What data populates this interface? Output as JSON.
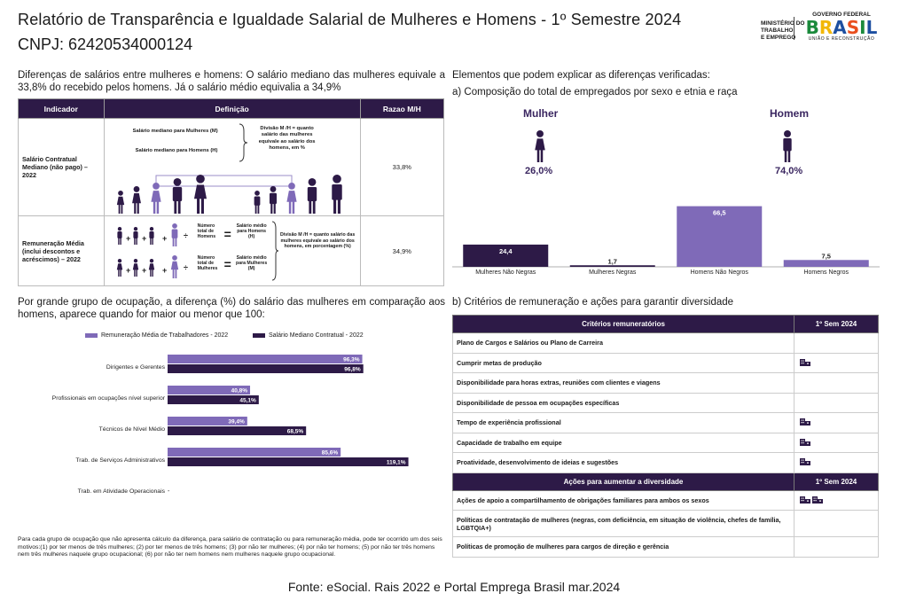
{
  "header": {
    "title": "Relatório de Transparência e Igualdade Salarial de Mulheres e Homens - 1º Semestre 2024",
    "cnpj": "CNPJ: 62420534000124",
    "ministry": [
      "MINISTÉRIO DO",
      "TRABALHO",
      "E EMPREGO"
    ],
    "gov_top": "GOVERNO FEDERAL",
    "gov_brand": "BRASIL",
    "gov_sub": "UNIÃO E RECONSTRUÇÃO"
  },
  "intro": "Diferenças de salários entre mulheres e homens: O salário mediano das mulheres equivale a 33,8% do recebido pelos homens. Já o salário médio equivalia a 34,9%",
  "left_table": {
    "headers": [
      "Indicador",
      "Definição",
      "Razao M/H"
    ],
    "row1": {
      "indicator": "Salário Contratual Mediano (não pago) – 2022",
      "def_women": "Salário mediano para Mulheres (M)",
      "def_men": "Salário mediano para Homens (H)",
      "def_division": "Divisão M /H = quanto salário das mulheres equivale ao salário dos homens, em %",
      "ratio": "33,8%"
    },
    "row2": {
      "indicator": "Remuneração Média (inclui descontos e acréscimos) – 2022",
      "total_men": "Número total de Homens",
      "avg_men": "Salário médio para Homens (H)",
      "total_women": "Número total de Mulheres",
      "avg_women": "Salário médio para Mulheres (M)",
      "division": "Divisão M /H = quanto salário das mulheres equivale ao salário dos homens, em porcentagem (%)",
      "ratio": "34,9%"
    }
  },
  "right_intro": "Elementos que podem explicar as diferenças verificadas:",
  "composition_title": "a) Composição do total de empregados por sexo e etnia e raça",
  "gender": {
    "women_label": "Mulher",
    "women_pct": "26,0%",
    "men_label": "Homem",
    "men_pct": "74,0%"
  },
  "colors": {
    "dark": "#2d1a47",
    "light": "#7f6ab8",
    "text_dark": "#3a2660"
  },
  "composition_chart": {
    "type": "bar",
    "categories": [
      "Mulheres Não Negras",
      "Mulheres Negras",
      "Homens Não Negros",
      "Homens Negros"
    ],
    "values": [
      24.4,
      1.7,
      66.5,
      7.5
    ],
    "value_labels": [
      "24,4",
      "1,7",
      "66,5",
      "7,5"
    ],
    "ylim": [
      0,
      70
    ]
  },
  "occupation_text": "Por grande grupo de ocupação, a diferença (%) do salário das mulheres em comparação aos homens, aparece quando for maior ou menor que 100:",
  "occupation_chart": {
    "type": "bar",
    "orientation": "horizontal",
    "categories": [
      "Dirigentes e Gerentes",
      "Profissionais em ocupações nível superior",
      "Técnicos de Nível Médio",
      "Trab. de Serviços Administrativos",
      "Trab. em Atividade Operacionais"
    ],
    "series": [
      {
        "name": "Remuneração Média de Trabalhadores - 2022",
        "values": [
          96.3,
          40.8,
          39.4,
          85.6,
          null
        ],
        "labels": [
          "96,3%",
          "40,8%",
          "39,4%",
          "85,6%",
          ""
        ]
      },
      {
        "name": "Salário Mediano Contratual - 2022",
        "values": [
          96.8,
          45.1,
          68.5,
          119.1,
          null
        ],
        "labels": [
          "96,8%",
          "45,1%",
          "68,5%",
          "119,1%",
          ""
        ]
      }
    ],
    "last_marker": "-",
    "xlim": [
      0,
      125
    ]
  },
  "note": "Para cada grupo de ocupação que não apresenta cálculo da diferença, para salário de contratação ou para remuneração média, pode ter ocorrido um dos seis motivos:(1) por ter menos de três mulheres; (2) por ter menos de três homens; (3) por não ter mulheres; (4) por não ter homens; (5) por não ter três homens nem três mulheres naquele grupo ocupacional; (6) por não ter nem homens nem mulheres naquele grupo ocupacional.",
  "criteria_title": "b) Critérios de remuneração e ações para garantir diversidade",
  "criteria_table": {
    "header": "Critérios remuneratórios",
    "period": "1º Sem 2024",
    "rows": [
      {
        "label": "Plano de Cargos e Salários ou Plano de Carreira",
        "icons": 0
      },
      {
        "label": "Cumprir metas de produção",
        "icons": 1
      },
      {
        "label": "Disponibilidade para horas extras, reuniões com clientes e viagens",
        "icons": 0
      },
      {
        "label": "Disponibilidade de pessoa em ocupações específicas",
        "icons": 0
      },
      {
        "label": "Tempo de experiência profissional",
        "icons": 1
      },
      {
        "label": "Capacidade de trabalho em equipe",
        "icons": 1
      },
      {
        "label": "Proatividade, desenvolvimento de ideias e sugestões",
        "icons": 1
      }
    ]
  },
  "actions_table": {
    "header": "Ações para aumentar a diversidade",
    "period": "1º Sem 2024",
    "rows": [
      {
        "label": "Ações de apoio a compartilhamento de obrigações familiares para ambos os sexos",
        "icons": 2
      },
      {
        "label": "Políticas de contratação de mulheres (negras, com deficiência, em situação de violência, chefes de família, LGBTQIA+)",
        "icons": 0
      },
      {
        "label": "Políticas de promoção de mulheres para cargos de direção e gerência",
        "icons": 0
      }
    ]
  },
  "footer": "Fonte: eSocial. Rais 2022 e Portal Emprega Brasil mar.2024"
}
